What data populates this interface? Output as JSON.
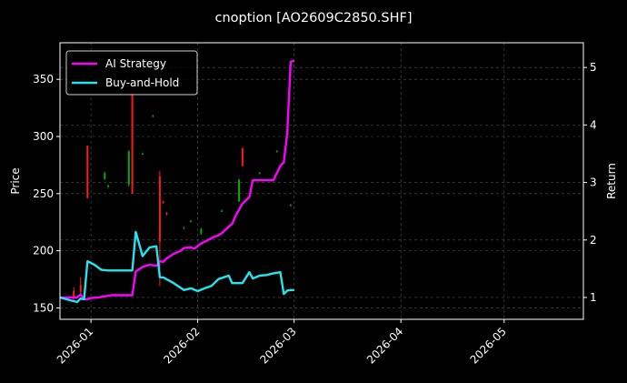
{
  "chart_data": {
    "type": "line",
    "title": "cnoption [AO2609C2850.SHF]",
    "ylabel": "Price",
    "y2label": "Return",
    "x_range": [
      "2025-12-23",
      "2026-05-24"
    ],
    "ylim": [
      140,
      382
    ],
    "y2lim": [
      0.62,
      5.43
    ],
    "x_ticks": [
      "2026-01",
      "2026-02",
      "2026-03",
      "2026-04",
      "2026-05"
    ],
    "y_ticks": [
      150,
      200,
      250,
      300,
      350
    ],
    "y2_ticks": [
      1,
      2,
      3,
      4,
      5
    ],
    "grid": true,
    "legend_position": "top-left",
    "colors": {
      "up": "#00b000",
      "down": "#ff1a1a",
      "strategy": "#ff00ff",
      "hold": "#22e5f0"
    },
    "candles": [
      {
        "date": "2025-12-27",
        "open": 165,
        "close": 158,
        "high": 168,
        "low": 156
      },
      {
        "date": "2025-12-29",
        "open": 170,
        "close": 164,
        "high": 177,
        "low": 162
      },
      {
        "date": "2025-12-31",
        "open": 292,
        "close": 246,
        "high": 292,
        "low": 246
      },
      {
        "date": "2026-01-05",
        "open": 263,
        "close": 268,
        "high": 269,
        "low": 262
      },
      {
        "date": "2026-01-06",
        "open": 256,
        "close": 257,
        "high": 258,
        "low": 255
      },
      {
        "date": "2026-01-12",
        "open": 258,
        "close": 287,
        "high": 288,
        "low": 256
      },
      {
        "date": "2026-01-13",
        "open": 338,
        "close": 250,
        "high": 338,
        "low": 250
      },
      {
        "date": "2026-01-16",
        "open": 285,
        "close": 285,
        "high": 286,
        "low": 284
      },
      {
        "date": "2026-01-19",
        "open": 318,
        "close": 318,
        "high": 319,
        "low": 317
      },
      {
        "date": "2026-01-21",
        "open": 265,
        "close": 208,
        "high": 270,
        "low": 169
      },
      {
        "date": "2026-01-22",
        "open": 243,
        "close": 242,
        "high": 244,
        "low": 241
      },
      {
        "date": "2026-01-23",
        "open": 233,
        "close": 232,
        "high": 234,
        "low": 231
      },
      {
        "date": "2026-01-28",
        "open": 220,
        "close": 220,
        "high": 221,
        "low": 219
      },
      {
        "date": "2026-01-30",
        "open": 226,
        "close": 226,
        "high": 227,
        "low": 225
      },
      {
        "date": "2026-02-02",
        "open": 215,
        "close": 219,
        "high": 220,
        "low": 214
      },
      {
        "date": "2026-02-08",
        "open": 235,
        "close": 235,
        "high": 236,
        "low": 234
      },
      {
        "date": "2026-02-13",
        "open": 243,
        "close": 262,
        "high": 263,
        "low": 243
      },
      {
        "date": "2026-02-14",
        "open": 290,
        "close": 274,
        "high": 290,
        "low": 274
      },
      {
        "date": "2026-02-19",
        "open": 268,
        "close": 268,
        "high": 269,
        "low": 267
      },
      {
        "date": "2026-02-24",
        "open": 287,
        "close": 287,
        "high": 288,
        "low": 286
      },
      {
        "date": "2026-02-28",
        "open": 240,
        "close": 240,
        "high": 241,
        "low": 239
      }
    ],
    "series": [
      {
        "name": "AI Strategy",
        "x": [
          "2025-12-23",
          "2025-12-26",
          "2025-12-28",
          "2025-12-29",
          "2025-12-30",
          "2025-12-31",
          "2026-01-01",
          "2026-01-03",
          "2026-01-05",
          "2026-01-07",
          "2026-01-09",
          "2026-01-11",
          "2026-01-13",
          "2026-01-14",
          "2026-01-16",
          "2026-01-18",
          "2026-01-20",
          "2026-01-21",
          "2026-01-22",
          "2026-01-23",
          "2026-01-25",
          "2026-01-27",
          "2026-01-28",
          "2026-01-30",
          "2026-01-31",
          "2026-02-02",
          "2026-02-04",
          "2026-02-06",
          "2026-02-07",
          "2026-02-08",
          "2026-02-10",
          "2026-02-11",
          "2026-02-12",
          "2026-02-14",
          "2026-02-16",
          "2026-02-17",
          "2026-02-19",
          "2026-02-21",
          "2026-02-23",
          "2026-02-25",
          "2026-02-26",
          "2026-02-27",
          "2026-02-28",
          "2026-03-01"
        ],
        "values": [
          1.0,
          1.0,
          1.0,
          1.05,
          0.97,
          0.97,
          0.99,
          1.0,
          1.02,
          1.04,
          1.04,
          1.04,
          1.04,
          1.45,
          1.53,
          1.57,
          1.55,
          1.63,
          1.62,
          1.68,
          1.76,
          1.81,
          1.86,
          1.87,
          1.85,
          1.94,
          2.0,
          2.06,
          2.08,
          2.12,
          2.23,
          2.28,
          2.42,
          2.63,
          2.75,
          3.04,
          3.04,
          3.04,
          3.04,
          3.29,
          3.35,
          3.85,
          5.1,
          5.12
        ]
      },
      {
        "name": "Buy-and-Hold",
        "x": [
          "2025-12-23",
          "2025-12-26",
          "2025-12-28",
          "2025-12-29",
          "2025-12-30",
          "2025-12-31",
          "2026-01-02",
          "2026-01-04",
          "2026-01-06",
          "2026-01-08",
          "2026-01-10",
          "2026-01-12",
          "2026-01-13",
          "2026-01-14",
          "2026-01-16",
          "2026-01-18",
          "2026-01-20",
          "2026-01-21",
          "2026-01-22",
          "2026-01-25",
          "2026-01-28",
          "2026-01-30",
          "2026-02-01",
          "2026-02-03",
          "2026-02-05",
          "2026-02-07",
          "2026-02-10",
          "2026-02-11",
          "2026-02-12",
          "2026-02-14",
          "2026-02-16",
          "2026-02-17",
          "2026-02-19",
          "2026-02-21",
          "2026-02-23",
          "2026-02-25",
          "2026-02-26",
          "2026-02-27",
          "2026-02-28",
          "2026-03-01"
        ],
        "values": [
          1.0,
          0.95,
          0.92,
          0.98,
          0.97,
          1.63,
          1.57,
          1.48,
          1.47,
          1.47,
          1.47,
          1.47,
          1.47,
          2.14,
          1.72,
          1.87,
          1.89,
          1.35,
          1.35,
          1.25,
          1.13,
          1.16,
          1.11,
          1.16,
          1.2,
          1.32,
          1.38,
          1.25,
          1.25,
          1.25,
          1.44,
          1.33,
          1.38,
          1.39,
          1.42,
          1.44,
          1.06,
          1.12,
          1.13,
          1.13
        ]
      }
    ]
  }
}
